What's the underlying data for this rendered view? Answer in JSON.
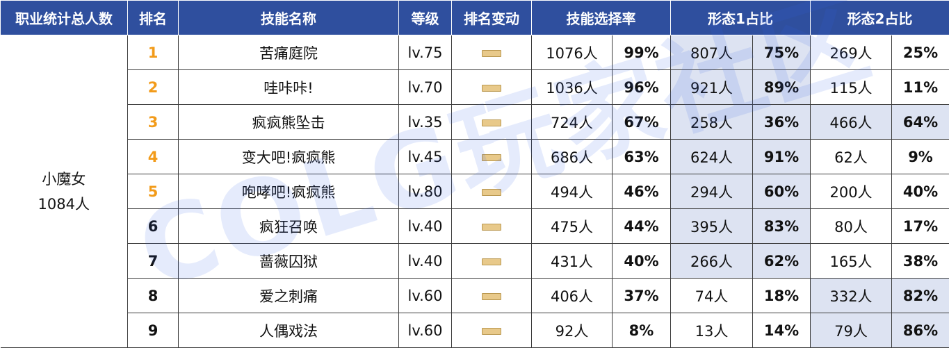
{
  "headers": {
    "job_total": "职业统计总人数",
    "rank": "排名",
    "skill_name": "技能名称",
    "level": "等级",
    "rank_change": "排名变动",
    "selection_rate": "技能选择率",
    "form1_ratio": "形态1占比",
    "form2_ratio": "形态2占比"
  },
  "job": {
    "name": "小魔女",
    "total": "1084人"
  },
  "rows": [
    {
      "rank": "1",
      "skill": "苦痛庭院",
      "level": "lv.75",
      "sel_count": "1076人",
      "sel_pct": "99%",
      "f1_count": "807人",
      "f1_pct": "75%",
      "f2_count": "269人",
      "f2_pct": "25%"
    },
    {
      "rank": "2",
      "skill": "哇咔咔!",
      "level": "lv.70",
      "sel_count": "1036人",
      "sel_pct": "96%",
      "f1_count": "921人",
      "f1_pct": "89%",
      "f2_count": "115人",
      "f2_pct": "11%"
    },
    {
      "rank": "3",
      "skill": "疯疯熊坠击",
      "level": "lv.35",
      "sel_count": "724人",
      "sel_pct": "67%",
      "f1_count": "258人",
      "f1_pct": "36%",
      "f2_count": "466人",
      "f2_pct": "64%"
    },
    {
      "rank": "4",
      "skill": "变大吧!疯疯熊",
      "level": "lv.45",
      "sel_count": "686人",
      "sel_pct": "63%",
      "f1_count": "624人",
      "f1_pct": "91%",
      "f2_count": "62人",
      "f2_pct": "9%"
    },
    {
      "rank": "5",
      "skill": "咆哮吧!疯疯熊",
      "level": "lv.80",
      "sel_count": "494人",
      "sel_pct": "46%",
      "f1_count": "294人",
      "f1_pct": "60%",
      "f2_count": "200人",
      "f2_pct": "40%"
    },
    {
      "rank": "6",
      "skill": "疯狂召唤",
      "level": "lv.40",
      "sel_count": "475人",
      "sel_pct": "44%",
      "f1_count": "395人",
      "f1_pct": "83%",
      "f2_count": "80人",
      "f2_pct": "17%"
    },
    {
      "rank": "7",
      "skill": "蔷薇囚狱",
      "level": "lv.40",
      "sel_count": "431人",
      "sel_pct": "40%",
      "f1_count": "266人",
      "f1_pct": "62%",
      "f2_count": "165人",
      "f2_pct": "38%"
    },
    {
      "rank": "8",
      "skill": "爱之刺痛",
      "level": "lv.60",
      "sel_count": "406人",
      "sel_pct": "37%",
      "f1_count": "74人",
      "f1_pct": "18%",
      "f2_count": "332人",
      "f2_pct": "82%"
    },
    {
      "rank": "9",
      "skill": "人偶戏法",
      "level": "lv.60",
      "sel_count": "92人",
      "sel_pct": "8%",
      "f1_count": "13人",
      "f1_pct": "14%",
      "f2_count": "79人",
      "f2_pct": "86%"
    }
  ],
  "rank_change_icon": "no-change-dash-icon",
  "colors": {
    "header_bg": "#2f4f9e",
    "top5_rank": "#f29b1a",
    "highlight_bg": "#dde3f2",
    "dash": "#e8c98a"
  },
  "watermark": "COLG玩家社区"
}
